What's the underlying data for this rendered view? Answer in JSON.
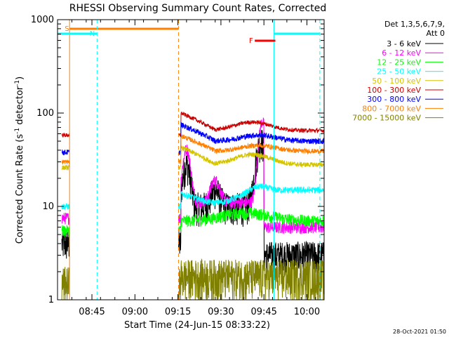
{
  "chart_data": {
    "type": "line",
    "title": "RHESSI Observing Summary Count Rates, Corrected",
    "xlabel": "Start Time (24-Jun-15 08:33:22)",
    "ylabel_parts": [
      "Corrected Count Rate (s",
      "-1",
      " detector",
      "-1",
      ")"
    ],
    "yscale": "log",
    "ylim": [
      1,
      1000
    ],
    "xlim_minutes": [
      0,
      93
    ],
    "x_ticks": [
      {
        "t": 12,
        "label": "08:45"
      },
      {
        "t": 27,
        "label": "09:00"
      },
      {
        "t": 42,
        "label": "09:15"
      },
      {
        "t": 57,
        "label": "09:30"
      },
      {
        "t": 72,
        "label": "09:45"
      },
      {
        "t": 87,
        "label": "10:00"
      }
    ],
    "y_ticks": [
      {
        "v": 1,
        "label": "1"
      },
      {
        "v": 10,
        "label": "10"
      },
      {
        "v": 100,
        "label": "100"
      },
      {
        "v": 1000,
        "label": "1000"
      }
    ],
    "legend_header": [
      "Det 1,3,5,6,7,9,",
      "Att 0"
    ],
    "legend_position": "right",
    "footer_date": "28-Oct-2021 01:50",
    "flags": [
      {
        "label": "S",
        "color": "#ff8000"
      },
      {
        "label": "N",
        "color": "#00ffff"
      },
      {
        "label": "F",
        "color": "#ff0000"
      }
    ],
    "series": [
      {
        "name": "3 - 6 keV",
        "color": "#000000"
      },
      {
        "name": "6 - 12 keV",
        "color": "#ff00ff"
      },
      {
        "name": "12 - 25 keV",
        "color": "#00ff00"
      },
      {
        "name": "25 - 50 keV",
        "color": "#00ffff"
      },
      {
        "name": "50 - 100 keV",
        "color": "#d4c400"
      },
      {
        "name": "100 - 300 keV",
        "color": "#cc0000"
      },
      {
        "name": "300 - 800 keV",
        "color": "#0000ff"
      },
      {
        "name": "800 - 7000 keV",
        "color": "#ff8000"
      },
      {
        "name": "7000 - 15000 keV",
        "color": "#808000"
      }
    ]
  }
}
